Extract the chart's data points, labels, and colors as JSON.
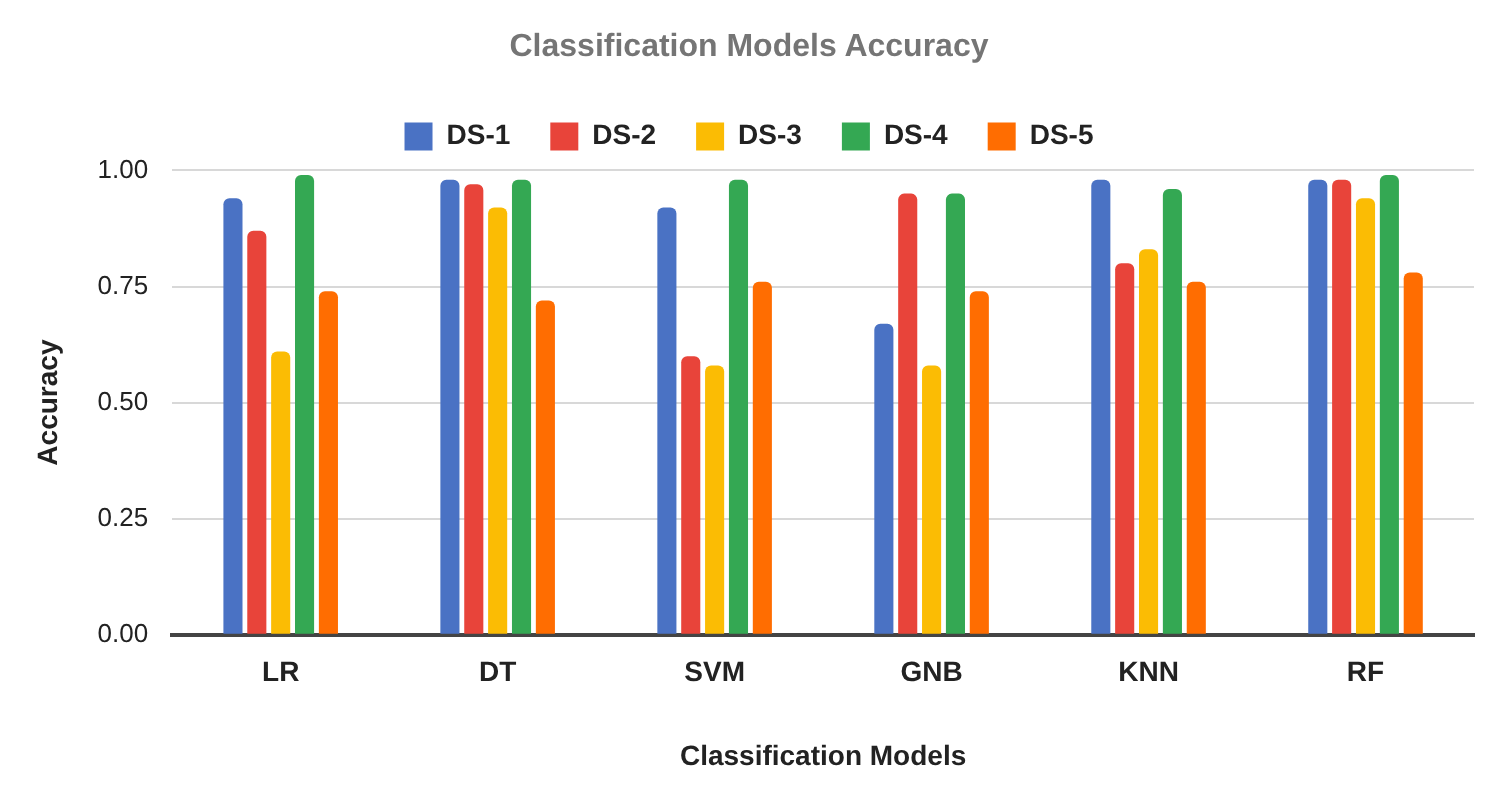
{
  "chart_data": {
    "type": "bar",
    "title": "Classification Models Accuracy",
    "xlabel": "Classification Models",
    "ylabel": "Accuracy",
    "categories": [
      "LR",
      "DT",
      "SVM",
      "GNB",
      "KNN",
      "RF"
    ],
    "series": [
      {
        "name": "DS-1",
        "color": "#4a72c4",
        "values": [
          0.94,
          0.98,
          0.92,
          0.67,
          0.98,
          0.98
        ]
      },
      {
        "name": "DS-2",
        "color": "#e8443a",
        "values": [
          0.87,
          0.97,
          0.6,
          0.95,
          0.8,
          0.98
        ]
      },
      {
        "name": "DS-3",
        "color": "#fbbc04",
        "values": [
          0.61,
          0.92,
          0.58,
          0.58,
          0.83,
          0.94
        ]
      },
      {
        "name": "DS-4",
        "color": "#34a853",
        "values": [
          0.99,
          0.98,
          0.98,
          0.95,
          0.96,
          0.99
        ]
      },
      {
        "name": "DS-5",
        "color": "#ff6d01",
        "values": [
          0.74,
          0.72,
          0.76,
          0.74,
          0.76,
          0.78
        ]
      }
    ],
    "ylim": [
      0,
      1
    ],
    "yticks": [
      {
        "value": 0,
        "label": "0.00"
      },
      {
        "value": 0.25,
        "label": "0.25"
      },
      {
        "value": 0.5,
        "label": "0.50"
      },
      {
        "value": 0.75,
        "label": "0.75"
      },
      {
        "value": 1,
        "label": "1.00"
      }
    ],
    "grid": "y",
    "legend": "top"
  }
}
